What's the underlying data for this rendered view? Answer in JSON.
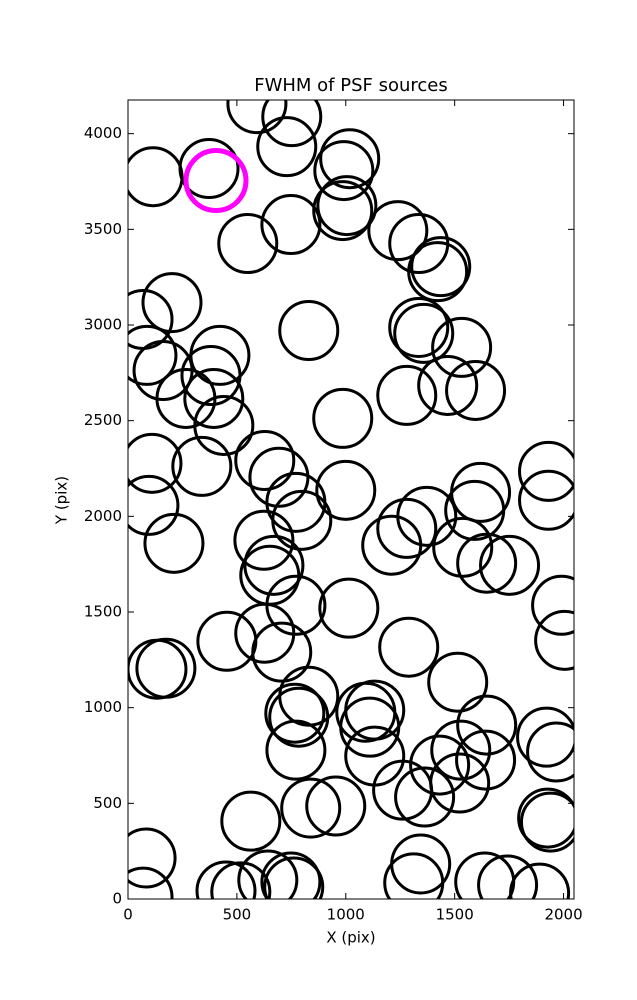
{
  "chart_data": {
    "type": "scatter",
    "title": "FWHM of PSF sources",
    "xlabel": "X (pix)",
    "ylabel": "Y (pix)",
    "xlim": [
      0,
      2048
    ],
    "ylim": [
      0,
      4176
    ],
    "xticks": [
      0,
      500,
      1000,
      1500,
      2000
    ],
    "yticks": [
      0,
      500,
      1000,
      1500,
      2000,
      2500,
      3000,
      3500,
      4000
    ],
    "series": [
      {
        "color": "#000000",
        "x": [
          115,
          372,
          592,
          752,
          729,
          1018,
          991,
          1005,
          986,
          748,
          550,
          1239,
          1335,
          1436,
          1422,
          202,
          69,
          87,
          161,
          830,
          422,
          381,
          394,
          266,
          440,
          1335,
          1358,
          1532,
          1280,
          1468,
          1596,
          986,
          110,
          339,
          628,
          693,
          771,
          798,
          1000,
          96,
          1619,
          1592,
          1931,
          1931,
          1372,
          1280,
          1211,
          1537,
          1647,
          1752,
          211,
          624,
          670,
          651,
          771,
          1014,
          1991,
          2005,
          454,
          628,
          706,
          1289,
          133,
          174,
          1514,
          830,
          766,
          784,
          1092,
          1133,
          1110,
          1647,
          1922,
          1968,
          771,
          1133,
          1431,
          1528,
          1642,
          1261,
          1362,
          1523,
          564,
          839,
          954,
          1927,
          1940,
          83,
          1344,
          1312,
          69,
          450,
          518,
          642,
          748,
          761,
          1638,
          1743,
          1890
        ],
        "y": [
          3775,
          3818,
          4157,
          4089,
          3932,
          3869,
          3807,
          3624,
          3598,
          3525,
          3426,
          3493,
          3426,
          3305,
          3279,
          3117,
          3029,
          2841,
          2762,
          2971,
          2841,
          2736,
          2616,
          2616,
          2475,
          2987,
          2956,
          2883,
          2632,
          2684,
          2658,
          2512,
          2277,
          2261,
          2292,
          2204,
          2073,
          1979,
          2136,
          2057,
          2125,
          2031,
          2235,
          2084,
          2000,
          1937,
          1849,
          1838,
          1755,
          1744,
          1859,
          1875,
          1744,
          1692,
          1535,
          1520,
          1535,
          1352,
          1347,
          1389,
          1290,
          1316,
          1201,
          1206,
          1133,
          1060,
          971,
          950,
          976,
          987,
          898,
          909,
          846,
          768,
          778,
          747,
          700,
          778,
          726,
          569,
          533,
          606,
          407,
          475,
          486,
          423,
          402,
          214,
          183,
          84,
          10,
          42,
          37,
          99,
          89,
          63,
          89,
          73,
          31
        ]
      },
      {
        "color": "#ff00ff",
        "x": [
          404
        ],
        "y": [
          3755
        ]
      }
    ]
  }
}
